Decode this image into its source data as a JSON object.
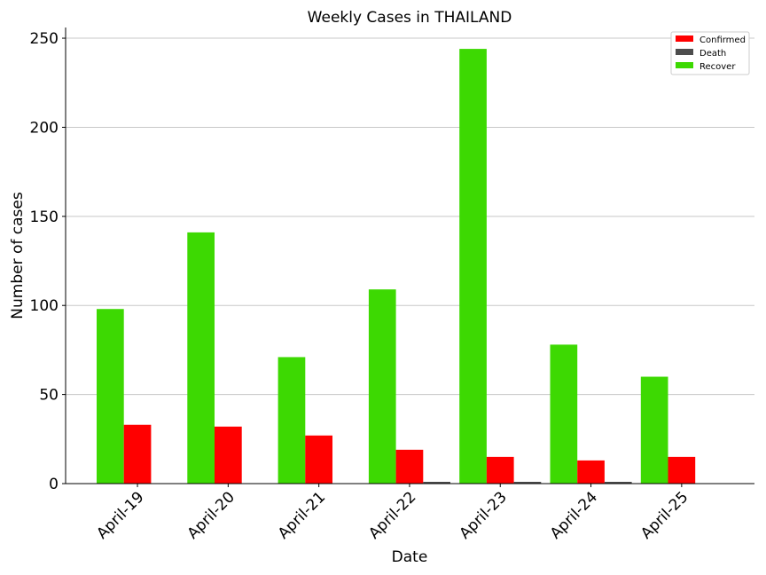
{
  "chart_data": {
    "type": "bar",
    "title": "Weekly Cases in THAILAND",
    "xlabel": "Date",
    "ylabel": "Number of cases",
    "categories": [
      "April-19",
      "April-20",
      "April-21",
      "April-22",
      "April-23",
      "April-24",
      "April-25"
    ],
    "series": [
      {
        "name": "Recover",
        "color": "#3dd902",
        "values": [
          98,
          141,
          71,
          109,
          244,
          78,
          60
        ]
      },
      {
        "name": "Confirmed",
        "color": "#ff0000",
        "values": [
          33,
          32,
          27,
          19,
          15,
          13,
          15
        ]
      },
      {
        "name": "Death",
        "color": "#4d4d4d",
        "values": [
          0,
          0,
          0,
          1,
          1,
          1,
          0
        ]
      }
    ],
    "legend": {
      "position": "top-right",
      "entries": [
        "Confirmed",
        "Death",
        "Recover"
      ]
    },
    "ylim": [
      0,
      256
    ],
    "yticks": [
      0,
      50,
      100,
      150,
      200,
      250
    ],
    "grid": "y"
  }
}
